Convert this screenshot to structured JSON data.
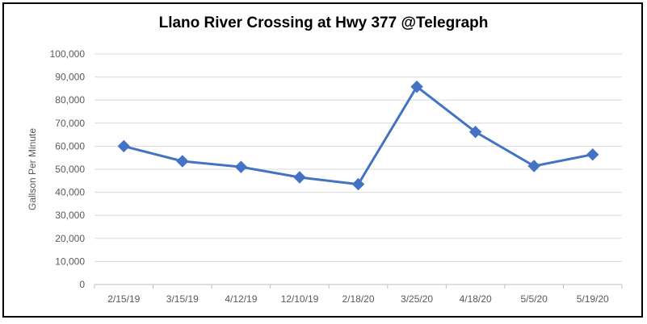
{
  "chart_data": {
    "type": "line",
    "title": "Llano River Crossing at Hwy 377 @Telegraph",
    "xlabel": "",
    "ylabel": "Gallson Per Minute",
    "categories": [
      "2/15/19",
      "3/15/19",
      "4/12/19",
      "12/10/19",
      "2/18/20",
      "3/25/20",
      "4/18/20",
      "5/5/20",
      "5/19/20"
    ],
    "series": [
      {
        "values": [
          60000,
          53500,
          51000,
          46500,
          43500,
          85800,
          66200,
          51400,
          56400
        ]
      }
    ],
    "ylim": [
      0,
      100000
    ],
    "yticks": [
      0,
      10000,
      20000,
      30000,
      40000,
      50000,
      60000,
      70000,
      80000,
      90000,
      100000
    ],
    "ytick_labels": [
      "0",
      "10,000",
      "20,000",
      "30,000",
      "40,000",
      "50,000",
      "60,000",
      "70,000",
      "80,000",
      "90,000",
      "100,000"
    ],
    "grid": true,
    "marker": "diamond",
    "colors": {
      "line": "#4472C4",
      "grid": "#D9D9D9",
      "axis_text": "#595959"
    }
  }
}
